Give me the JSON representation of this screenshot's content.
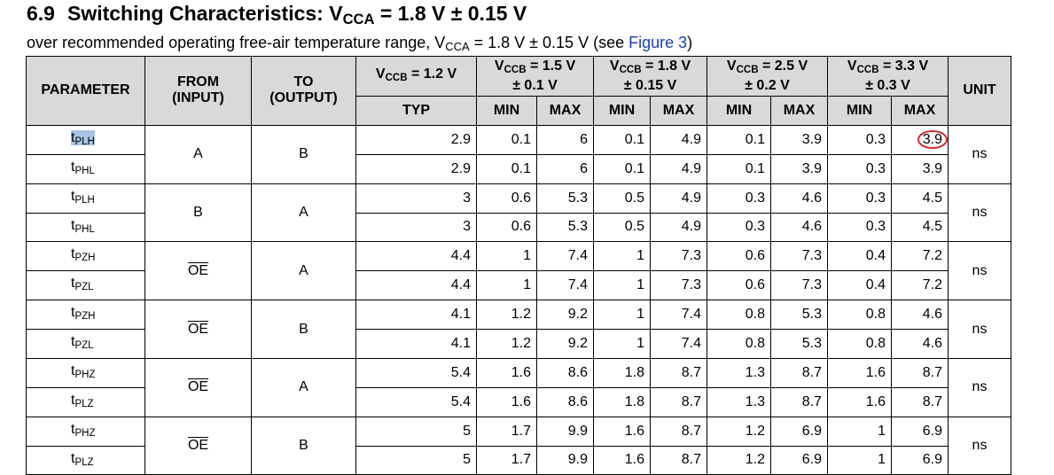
{
  "section": "6.9",
  "title": {
    "text": "Switching Characteristics: V",
    "sub": "CCA",
    "rest": " = 1.8 V ± 0.15 V"
  },
  "subtitle": {
    "pre": "over recommended operating free-air temperature range, V",
    "sub": "CCA",
    "mid": " = 1.8 V ± 0.15 V (see ",
    "link": "Figure 3",
    "post": ")"
  },
  "headers": {
    "parameter": "PARAMETER",
    "from": [
      "FROM",
      "(INPUT)"
    ],
    "to": [
      "TO",
      "(OUTPUT)"
    ],
    "unit": "UNIT",
    "typ": "TYP",
    "min": "MIN",
    "max": "MAX",
    "vccb": [
      {
        "pre": "V",
        "sub": "CCB",
        "post": " = 1.2 V",
        "line2": ""
      },
      {
        "pre": "V",
        "sub": "CCB",
        "post": " = 1.5 V",
        "line2": "± 0.1 V"
      },
      {
        "pre": "V",
        "sub": "CCB",
        "post": " = 1.8 V",
        "line2": "± 0.15 V"
      },
      {
        "pre": "V",
        "sub": "CCB",
        "post": " = 2.5 V",
        "line2": "± 0.2 V"
      },
      {
        "pre": "V",
        "sub": "CCB",
        "post": " = 3.3 V",
        "line2": "± 0.3 V"
      }
    ]
  },
  "rows": [
    {
      "param": "t",
      "psub": "PLH",
      "from": "A",
      "to": "B",
      "unit": "ns",
      "vals": [
        "2.9",
        "0.1",
        "6",
        "0.1",
        "4.9",
        "0.1",
        "3.9",
        "0.3",
        "3.9"
      ]
    },
    {
      "param": "t",
      "psub": "PHL",
      "vals": [
        "2.9",
        "0.1",
        "6",
        "0.1",
        "4.9",
        "0.1",
        "3.9",
        "0.3",
        "3.9"
      ]
    },
    {
      "param": "t",
      "psub": "PLH",
      "from": "B",
      "to": "A",
      "unit": "ns",
      "vals": [
        "3",
        "0.6",
        "5.3",
        "0.5",
        "4.9",
        "0.3",
        "4.6",
        "0.3",
        "4.5"
      ]
    },
    {
      "param": "t",
      "psub": "PHL",
      "vals": [
        "3",
        "0.6",
        "5.3",
        "0.5",
        "4.9",
        "0.3",
        "4.6",
        "0.3",
        "4.5"
      ]
    },
    {
      "param": "t",
      "psub": "PZH",
      "from": "OE",
      "to": "A",
      "unit": "ns",
      "vals": [
        "4.4",
        "1",
        "7.4",
        "1",
        "7.3",
        "0.6",
        "7.3",
        "0.4",
        "7.2"
      ]
    },
    {
      "param": "t",
      "psub": "PZL",
      "vals": [
        "4.4",
        "1",
        "7.4",
        "1",
        "7.3",
        "0.6",
        "7.3",
        "0.4",
        "7.2"
      ]
    },
    {
      "param": "t",
      "psub": "PZH",
      "from": "OE",
      "to": "B",
      "unit": "ns",
      "vals": [
        "4.1",
        "1.2",
        "9.2",
        "1",
        "7.4",
        "0.8",
        "5.3",
        "0.8",
        "4.6"
      ]
    },
    {
      "param": "t",
      "psub": "PZL",
      "vals": [
        "4.1",
        "1.2",
        "9.2",
        "1",
        "7.4",
        "0.8",
        "5.3",
        "0.8",
        "4.6"
      ]
    },
    {
      "param": "t",
      "psub": "PHZ",
      "from": "OE",
      "to": "A",
      "unit": "ns",
      "vals": [
        "5.4",
        "1.6",
        "8.6",
        "1.8",
        "8.7",
        "1.3",
        "8.7",
        "1.6",
        "8.7"
      ]
    },
    {
      "param": "t",
      "psub": "PLZ",
      "vals": [
        "5.4",
        "1.6",
        "8.6",
        "1.8",
        "8.7",
        "1.3",
        "8.7",
        "1.6",
        "8.7"
      ]
    },
    {
      "param": "t",
      "psub": "PHZ",
      "from": "OE",
      "to": "B",
      "unit": "ns",
      "vals": [
        "5",
        "1.7",
        "9.9",
        "1.6",
        "8.7",
        "1.2",
        "6.9",
        "1",
        "6.9"
      ]
    },
    {
      "param": "t",
      "psub": "PLZ",
      "vals": [
        "5",
        "1.7",
        "9.9",
        "1.6",
        "8.7",
        "1.2",
        "6.9",
        "1",
        "6.9"
      ]
    }
  ],
  "colors": {
    "link": "#1a3fbf",
    "header_bg": "#d9d9d9",
    "highlight": "#a9c4e6",
    "annotation": "#d12b2b"
  }
}
